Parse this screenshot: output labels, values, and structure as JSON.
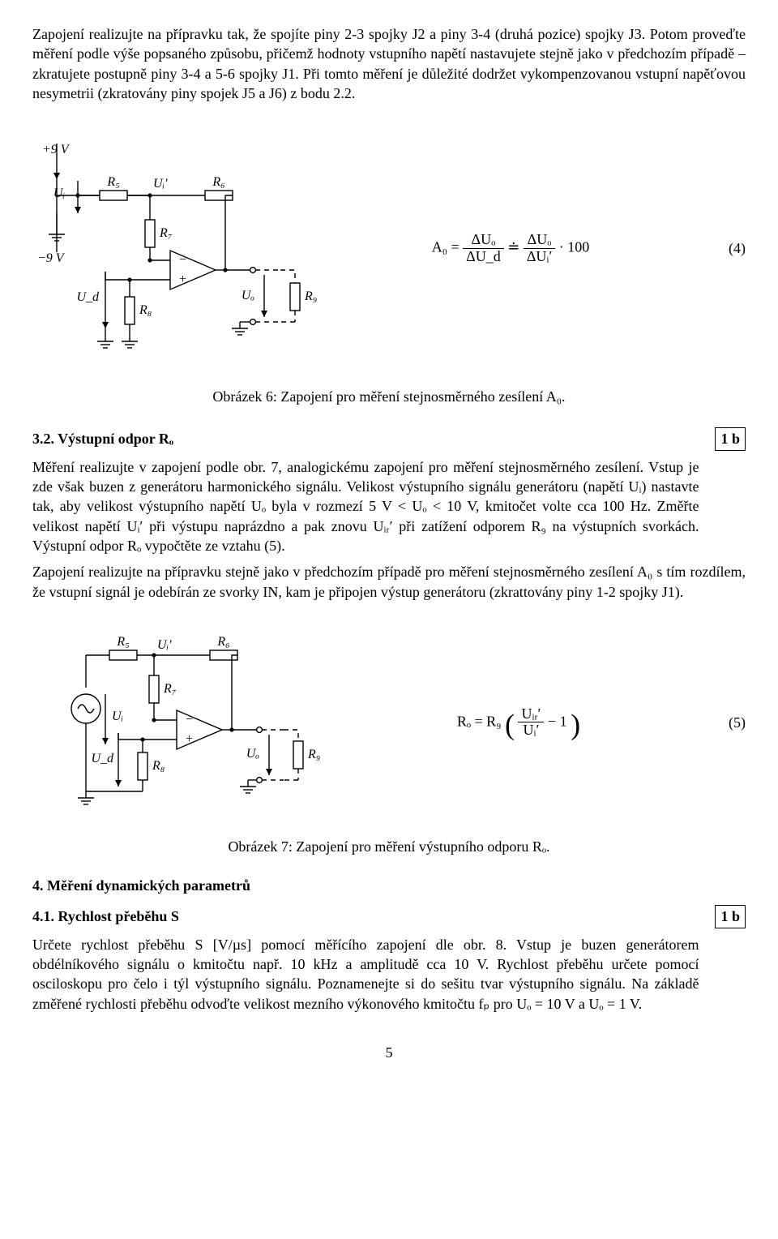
{
  "para1": "Zapojení realizujte na přípravku tak, že spojíte piny 2-3 spojky J2 a piny 3-4 (druhá pozice) spojky J3. Potom proveďte měření podle výše popsaného způsobu, přičemž hodnoty vstupního napětí nastavujete stejně jako v předchozím případě – zkratujete postupně piny 3-4 a 5-6 spojky J1. Při tomto měření je důležité dodržet vykompenzovanou vstupní napěťovou nesymetrii (zkratovány piny spojek J5 a J6) z bodu 2.2.",
  "rail_top": "+9 V",
  "rail_bot": "−9 V",
  "lbl": {
    "Ui": "Uᵢ",
    "Uip": "Uᵢ′",
    "Ud": "U_d",
    "Uo": "Uₒ",
    "R5": "R₅",
    "R6": "R₆",
    "R7": "R₇",
    "R8": "R₈",
    "R9": "R₉"
  },
  "eq4": {
    "lhs": "A₀ =",
    "num1": "ΔUₒ",
    "den1": "ΔU_d",
    "mid": " ≐ ",
    "num2": "ΔUₒ",
    "den2": "ΔUᵢ′",
    "tail": " · 100",
    "num": "(4)"
  },
  "figcap6": "Obrázek 6: Zapojení pro měření stejnosměrného zesílení A₀.",
  "sec32_title": "3.2. Výstupní odpor Rₒ",
  "badge32": "1 b",
  "para32": "Měření realizujte v zapojení podle obr. 7, analogickému zapojení pro měření stejnosměrného zesílení. Vstup je zde však buzen z generátoru harmonického signálu. Velikost výstupního signálu generátoru (napětí Uᵢ) nastavte tak, aby velikost výstupního napětí Uₒ byla v rozmezí 5 V < Uₒ < 10 V, kmitočet volte cca 100 Hz. Změřte velikost napětí Uᵢ′ při výstupu naprázdno a pak znovu Uᵢᵣ′ při zatížení odporem R₉ na výstupních svorkách. Výstupní odpor Rₒ vypočtěte ze vztahu (5).",
  "para32b": "Zapojení realizujte na přípravku stejně jako v předchozím případě pro měření stejnosměrného zesílení A₀ s tím rozdílem, že vstupní signál je odebírán ze svorky IN, kam je připojen výstup generátoru (zkrattovány piny 1-2 spojky J1).",
  "eq5": {
    "lhs": "Rₒ = R₉",
    "num": "Uᵢᵣ′",
    "den": "Uᵢ′",
    "tail": " − 1",
    "eqnum": "(5)"
  },
  "figcap7": "Obrázek 7: Zapojení pro měření výstupního odporu Rₒ.",
  "sec4_title": "4. Měření dynamických parametrů",
  "sec41_title": "4.1. Rychlost přeběhu S",
  "badge41": "1 b",
  "para41": "Určete rychlost přeběhu S [V/µs] pomocí měřícího zapojení dle obr. 8. Vstup je buzen generátorem obdélníkového signálu o kmitočtu např. 10 kHz a amplitudě cca 10 V. Rychlost přeběhu určete pomocí osciloskopu pro čelo i týl výstupního signálu. Poznamenejte si do sešitu tvar výstupního signálu. Na základě změřené rychlosti přeběhu odvoďte velikost mezního výkonového kmitočtu fₚ pro Uₒ = 10 V a Uₒ = 1 V.",
  "page": "5",
  "circuit": {
    "stroke": "#000000",
    "stroke_width": 1.4,
    "font_size": 16,
    "font_family": "Times New Roman, serif",
    "dash": "6 5",
    "gnd_w": 14,
    "res_w": 34,
    "res_h": 12,
    "tri_w": 56,
    "tri_h": 48,
    "term_r": 2.6
  }
}
